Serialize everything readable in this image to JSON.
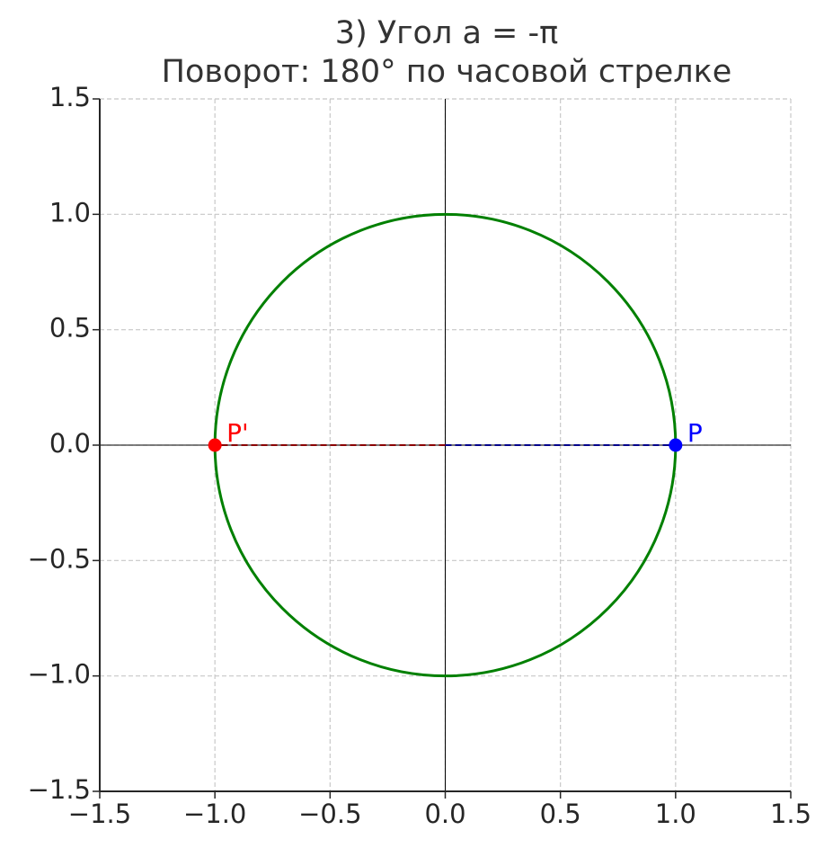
{
  "chart_data": {
    "type": "geometry",
    "title": "3) Угол a = -π",
    "subtitle": "Поворот: 180° по часовой стрелке",
    "xlim": [
      -1.5,
      1.5
    ],
    "ylim": [
      -1.5,
      1.5
    ],
    "xticks": [
      {
        "value": -1.5,
        "label": "−1.5"
      },
      {
        "value": -1.0,
        "label": "−1.0"
      },
      {
        "value": -0.5,
        "label": "−0.5"
      },
      {
        "value": 0,
        "label": "0.0"
      },
      0.5,
      {
        "value": 1.0,
        "label": "1.0"
      },
      1.5
    ],
    "yticks": [
      {
        "value": -1.5,
        "label": "−1.5"
      },
      {
        "value": -1.0,
        "label": "−1.0"
      },
      {
        "value": -0.5,
        "label": "−0.5"
      },
      {
        "value": 0,
        "label": "0.0"
      },
      0.5,
      {
        "value": 1.0,
        "label": "1.0"
      },
      1.5
    ],
    "grid": true,
    "hlines": [
      0
    ],
    "vlines": [
      0
    ],
    "circle": {
      "center": [
        0,
        0
      ],
      "radius": 1,
      "color": "#008000"
    },
    "segments": [
      {
        "x": [
          0,
          1
        ],
        "y": [
          0,
          0
        ],
        "color": "#00008b"
      },
      {
        "x": [
          0,
          -1
        ],
        "y": [
          0,
          0
        ],
        "color": "#8b0000"
      }
    ],
    "points": [
      {
        "label": "P",
        "x": 1,
        "y": 0,
        "color": "#0000ff"
      },
      {
        "label": "P'",
        "x": -1,
        "y": 0,
        "color": "#ff0000"
      }
    ]
  }
}
